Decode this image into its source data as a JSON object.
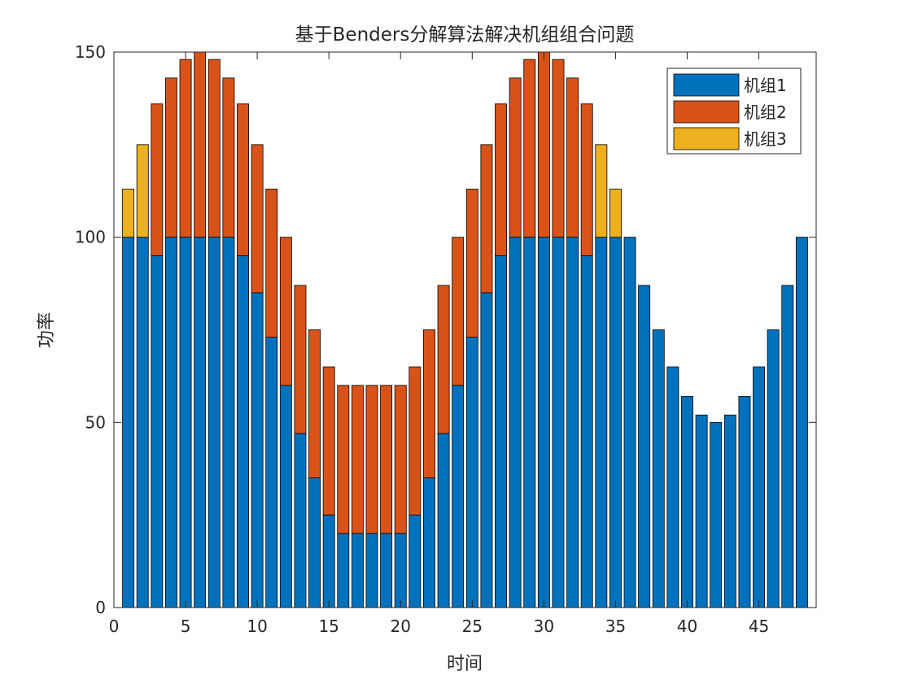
{
  "chart_data": {
    "type": "stacked_bar",
    "title": "基于Benders分解算法解决机组组合问题",
    "x_label": "时间",
    "y_label": "功率",
    "x": [
      1,
      2,
      3,
      4,
      5,
      6,
      7,
      8,
      9,
      10,
      11,
      12,
      13,
      14,
      15,
      16,
      17,
      18,
      19,
      20,
      21,
      22,
      23,
      24,
      25,
      26,
      27,
      28,
      29,
      30,
      31,
      32,
      33,
      34,
      35,
      36,
      37,
      38,
      39,
      40,
      41,
      42,
      43,
      44,
      45,
      46,
      47,
      48
    ],
    "series": [
      {
        "name": "机组1",
        "color": "#0072BD",
        "values": [
          100,
          100,
          95,
          100,
          100,
          100,
          100,
          100,
          95,
          85,
          73,
          60,
          47,
          35,
          25,
          20,
          20,
          20,
          20,
          20,
          25,
          35,
          47,
          60,
          73,
          85,
          95,
          100,
          100,
          100,
          100,
          100,
          95,
          100,
          100,
          100,
          87,
          75,
          65,
          57,
          52,
          50,
          52,
          57,
          65,
          75,
          87,
          100
        ]
      },
      {
        "name": "机组2",
        "color": "#D95319",
        "values": [
          0,
          0,
          41,
          43,
          48,
          50,
          48,
          43,
          41,
          40,
          40,
          40,
          40,
          40,
          40,
          40,
          40,
          40,
          40,
          40,
          40,
          40,
          40,
          40,
          40,
          40,
          41,
          43,
          48,
          50,
          48,
          43,
          41,
          0,
          0,
          0,
          0,
          0,
          0,
          0,
          0,
          0,
          0,
          0,
          0,
          0,
          0,
          0
        ]
      },
      {
        "name": "机组3",
        "color": "#EDB120",
        "values": [
          13,
          25,
          0,
          0,
          0,
          0,
          0,
          0,
          0,
          0,
          0,
          0,
          0,
          0,
          0,
          0,
          0,
          0,
          0,
          0,
          0,
          0,
          0,
          0,
          0,
          0,
          0,
          0,
          0,
          0,
          0,
          0,
          0,
          25,
          13,
          0,
          0,
          0,
          0,
          0,
          0,
          0,
          0,
          0,
          0,
          0,
          0,
          0
        ]
      }
    ],
    "xlim": [
      0,
      49
    ],
    "xticks": [
      0,
      5,
      10,
      15,
      20,
      25,
      30,
      35,
      40,
      45
    ],
    "ylim": [
      0,
      150
    ],
    "yticks": [
      0,
      50,
      100,
      150
    ],
    "legend": "upper right"
  }
}
